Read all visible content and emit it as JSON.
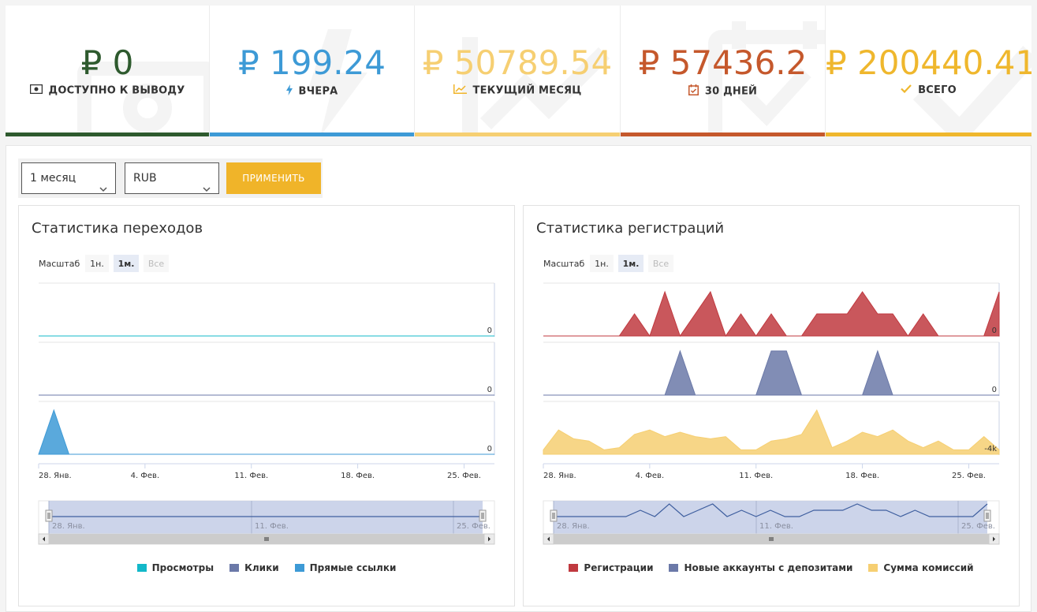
{
  "stats": [
    {
      "amount": "₽ 0",
      "label": "ДОСТУПНО К ВЫВОДУ",
      "icon": "money-icon",
      "color": "#2e5a2e",
      "bar": "#2e5a2e"
    },
    {
      "amount": "₽ 199.24",
      "label": "ВЧЕРА",
      "icon": "bolt-icon",
      "color": "#3d9ad6",
      "bar": "#3d9ad6"
    },
    {
      "amount": "₽ 50789.54",
      "label": "ТЕКУЩИЙ МЕСЯЦ",
      "icon": "chart-line-icon",
      "color": "#f6cf72",
      "bar": "#f6cf72"
    },
    {
      "amount": "₽ 57436.2",
      "label": "30 ДНЕЙ",
      "icon": "calendar-check-icon",
      "color": "#c5582c",
      "bar": "#c5582c"
    },
    {
      "amount": "₽ 200440.41",
      "label": "ВСЕГО",
      "icon": "check-icon",
      "color": "#efb72d",
      "bar": "#efb72d"
    }
  ],
  "filters": {
    "period": "1 месяц",
    "currency": "RUB",
    "apply_label": "ПРИМЕНИТЬ"
  },
  "charts": [
    {
      "title": "Статистика переходов",
      "zoom_label": "Масштаб",
      "zoom_options": [
        "1н.",
        "1м.",
        "Все"
      ],
      "zoom_active": 1,
      "pane_labels": [
        "0",
        "0",
        "0"
      ],
      "x_ticks": [
        "28. Янв.",
        "4. Фев.",
        "11. Фев.",
        "18. Фев.",
        "25. Фев."
      ],
      "navigator_ticks": [
        "28. Янв.",
        "11. Фев.",
        "25. Фев."
      ],
      "legend": [
        {
          "name": "Просмотры",
          "color": "#13b8c9"
        },
        {
          "name": "Клики",
          "color": "#6b79a8"
        },
        {
          "name": "Прямые ссылки",
          "color": "#3d9ad6"
        }
      ]
    },
    {
      "title": "Статистика регистраций",
      "zoom_label": "Масштаб",
      "zoom_options": [
        "1н.",
        "1м.",
        "Все"
      ],
      "zoom_active": 1,
      "pane_labels": [
        "0",
        "0",
        "-4k"
      ],
      "x_ticks": [
        "28. Янв.",
        "4. Фев.",
        "11. Фев.",
        "18. Фев.",
        "25. Фев."
      ],
      "navigator_ticks": [
        "28. Янв.",
        "11. Фев.",
        "25. Фев."
      ],
      "legend": [
        {
          "name": "Регистрации",
          "color": "#c0393f"
        },
        {
          "name": "Новые аккаунты с депозитами",
          "color": "#6b79a8"
        },
        {
          "name": "Сумма комиссий",
          "color": "#f6cf72"
        }
      ]
    }
  ],
  "chart_data": [
    {
      "type": "area",
      "title": "Статистика переходов",
      "x": [
        "28 Янв",
        "29",
        "30",
        "31",
        "1 Фев",
        "2",
        "3",
        "4",
        "5",
        "6",
        "7",
        "8",
        "9",
        "10",
        "11",
        "12",
        "13",
        "14",
        "15",
        "16",
        "17",
        "18",
        "19",
        "20",
        "21",
        "22",
        "23",
        "24",
        "25",
        "26",
        "27"
      ],
      "series": [
        {
          "name": "Просмотры",
          "values": [
            0,
            0,
            0,
            0,
            0,
            0,
            0,
            0,
            0,
            0,
            0,
            0,
            0,
            0,
            0,
            0,
            0,
            0,
            0,
            0,
            0,
            0,
            0,
            0,
            0,
            0,
            0,
            0,
            0,
            0,
            0
          ]
        },
        {
          "name": "Клики",
          "values": [
            0,
            0,
            0,
            0,
            0,
            0,
            0,
            0,
            0,
            0,
            0,
            0,
            0,
            0,
            0,
            0,
            0,
            0,
            0,
            0,
            0,
            0,
            0,
            0,
            0,
            0,
            0,
            0,
            0,
            0,
            0
          ]
        },
        {
          "name": "Прямые ссылки",
          "values": [
            0,
            1,
            0,
            0,
            0,
            0,
            0,
            0,
            0,
            0,
            0,
            0,
            0,
            0,
            0,
            0,
            0,
            0,
            0,
            0,
            0,
            0,
            0,
            0,
            0,
            0,
            0,
            0,
            0,
            0,
            0
          ]
        }
      ]
    },
    {
      "type": "area",
      "title": "Статистика регистраций",
      "x": [
        "28 Янв",
        "29",
        "30",
        "31",
        "1 Фев",
        "2",
        "3",
        "4",
        "5",
        "6",
        "7",
        "8",
        "9",
        "10",
        "11",
        "12",
        "13",
        "14",
        "15",
        "16",
        "17",
        "18",
        "19",
        "20",
        "21",
        "22",
        "23",
        "24",
        "25",
        "26",
        "27"
      ],
      "series": [
        {
          "name": "Регистрации",
          "values": [
            0,
            0,
            0,
            0,
            0,
            0,
            1,
            0,
            2,
            0,
            1,
            2,
            0,
            1,
            0,
            1,
            0,
            0,
            1,
            1,
            1,
            2,
            1,
            1,
            0,
            1,
            0,
            0,
            0,
            0,
            2
          ]
        },
        {
          "name": "Новые аккаунты с депозитами",
          "values": [
            0,
            0,
            0,
            0,
            0,
            0,
            0,
            0,
            0,
            1,
            0,
            0,
            0,
            0,
            0,
            1,
            1,
            0,
            0,
            0,
            0,
            0,
            1,
            0,
            0,
            0,
            0,
            0,
            0,
            0,
            0
          ]
        },
        {
          "name": "Сумма комиссий",
          "values": [
            200,
            1100,
            700,
            600,
            200,
            300,
            900,
            1100,
            800,
            1000,
            800,
            700,
            800,
            200,
            200,
            600,
            700,
            900,
            2000,
            300,
            600,
            1000,
            800,
            1100,
            600,
            300,
            600,
            200,
            200,
            800,
            200
          ]
        }
      ]
    }
  ]
}
